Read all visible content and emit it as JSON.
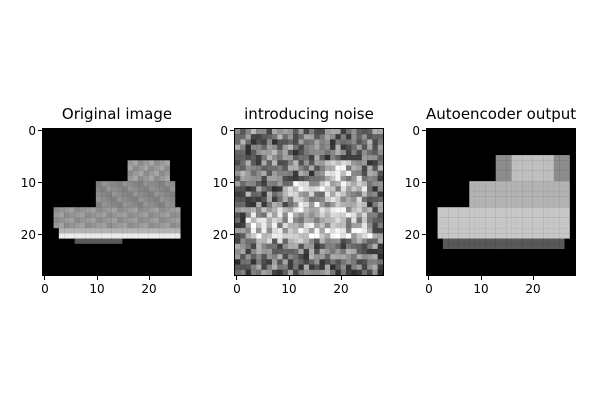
{
  "figure": {
    "panels": [
      {
        "title": "Original image",
        "variant": "original",
        "x_ticks": [
          "0",
          "10",
          "20"
        ],
        "y_ticks": [
          "0",
          "10",
          "20"
        ],
        "description_colormap": "gray"
      },
      {
        "title": "introducing noise",
        "variant": "noisy",
        "x_ticks": [
          "0",
          "10",
          "20"
        ],
        "y_ticks": [
          "0",
          "10",
          "20"
        ],
        "description_colormap": "gray"
      },
      {
        "title": "Autoencoder output",
        "variant": "reconstructed",
        "x_ticks": [
          "0",
          "10",
          "20"
        ],
        "y_ticks": [
          "0",
          "10",
          "20"
        ],
        "description_colormap": "gray"
      }
    ]
  },
  "colors": {
    "background": "#ffffff",
    "image_background": "#000000",
    "axis": "#000000"
  }
}
